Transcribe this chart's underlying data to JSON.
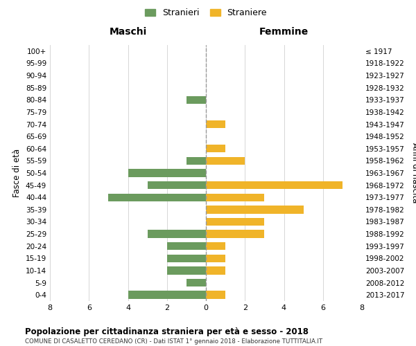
{
  "age_groups": [
    "0-4",
    "5-9",
    "10-14",
    "15-19",
    "20-24",
    "25-29",
    "30-34",
    "35-39",
    "40-44",
    "45-49",
    "50-54",
    "55-59",
    "60-64",
    "65-69",
    "70-74",
    "75-79",
    "80-84",
    "85-89",
    "90-94",
    "95-99",
    "100+"
  ],
  "birth_years": [
    "2013-2017",
    "2008-2012",
    "2003-2007",
    "1998-2002",
    "1993-1997",
    "1988-1992",
    "1983-1987",
    "1978-1982",
    "1973-1977",
    "1968-1972",
    "1963-1967",
    "1958-1962",
    "1953-1957",
    "1948-1952",
    "1943-1947",
    "1938-1942",
    "1933-1937",
    "1928-1932",
    "1923-1927",
    "1918-1922",
    "≤ 1917"
  ],
  "maschi": [
    4,
    1,
    2,
    2,
    2,
    3,
    0,
    0,
    5,
    3,
    4,
    1,
    0,
    0,
    0,
    0,
    1,
    0,
    0,
    0,
    0
  ],
  "femmine": [
    1,
    0,
    1,
    1,
    1,
    3,
    3,
    5,
    3,
    7,
    0,
    2,
    1,
    0,
    1,
    0,
    0,
    0,
    0,
    0,
    0
  ],
  "color_maschi": "#6b9b5e",
  "color_femmine": "#f0b429",
  "xlim": 8,
  "title": "Popolazione per cittadinanza straniera per età e sesso - 2018",
  "subtitle": "COMUNE DI CASALETTO CEREDANO (CR) - Dati ISTAT 1° gennaio 2018 - Elaborazione TUTTITALIA.IT",
  "label_maschi": "Stranieri",
  "label_femmine": "Straniere",
  "header_left": "Maschi",
  "header_right": "Femmine",
  "ylabel_left": "Fasce di età",
  "ylabel_right": "Anni di nascita",
  "bg_color": "#ffffff",
  "grid_color": "#d0d0d0"
}
